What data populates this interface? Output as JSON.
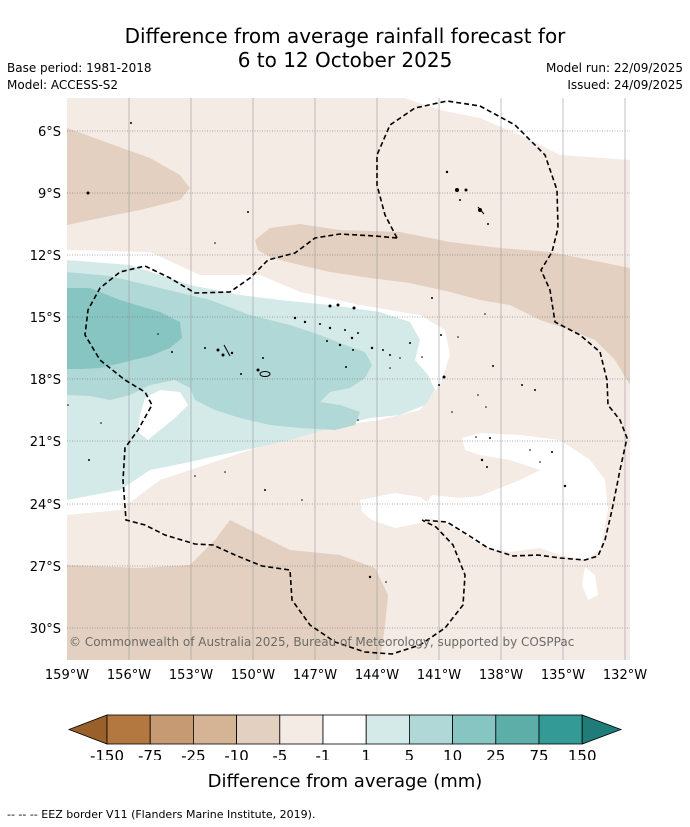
{
  "title": {
    "line1": "Difference from average rainfall forecast for",
    "line2": "6 to 12 October 2025"
  },
  "meta": {
    "base_period": "Base period: 1981-2018",
    "model": "Model: ACCESS-S2",
    "model_run": "Model run: 22/09/2025",
    "issued": "Issued: 24/09/2025"
  },
  "map": {
    "lat_labels": [
      "6°S",
      "9°S",
      "12°S",
      "15°S",
      "18°S",
      "21°S",
      "24°S",
      "27°S",
      "30°S"
    ],
    "lon_labels": [
      "159°W",
      "156°W",
      "153°W",
      "150°W",
      "147°W",
      "144°W",
      "141°W",
      "138°W",
      "135°W",
      "132°W"
    ],
    "copyright": "© Commonwealth of Australia 2025, Bureau of Meteorology, supported by COSPPac",
    "colors": {
      "dry_1_5": "#f4ebe4",
      "dry_5_10": "#e3d0c0",
      "neutral": "#ffffff",
      "wet_1_5": "#d4eae8",
      "wet_5_10": "#b0d8d6",
      "wet_10_25": "#87c5c2"
    }
  },
  "colorbar": {
    "labels": [
      "-150",
      "-75",
      "-25",
      "-10",
      "-5",
      "-1",
      "1",
      "5",
      "10",
      "25",
      "75",
      "150"
    ],
    "colors": [
      "#99602a",
      "#b37840",
      "#c69a72",
      "#d5b496",
      "#e3d0c0",
      "#f4ebe4",
      "#ffffff",
      "#d4eae8",
      "#b0d8d6",
      "#87c5c2",
      "#5daea9",
      "#349a95",
      "#1f7c78"
    ],
    "title": "Difference from average (mm)"
  },
  "legend": {
    "eez": "-- -- -- EEZ border V11 (Flanders Marine Institute, 2019)."
  }
}
